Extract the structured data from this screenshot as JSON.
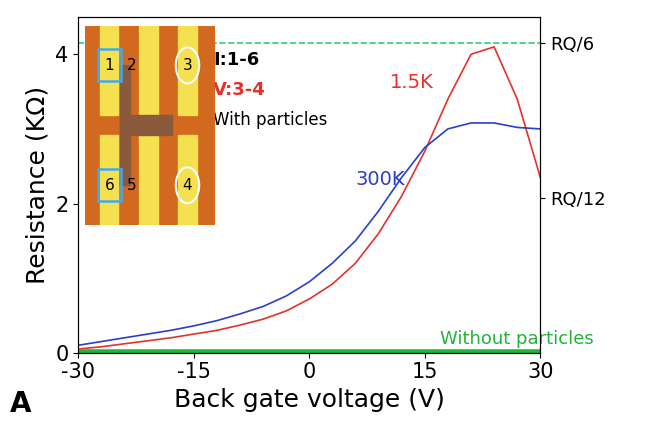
{
  "chart_data": {
    "type": "line",
    "x_label": "Back gate voltage (V)",
    "y_label": "Resistance (KΩ)",
    "panel": "A",
    "x": [
      -30,
      -27,
      -24,
      -21,
      -18,
      -15,
      -12,
      -9,
      -6,
      -3,
      0,
      3,
      6,
      9,
      12,
      15,
      18,
      21,
      24,
      27,
      30
    ],
    "series": [
      {
        "name": "1.5K",
        "color": "#e8302a",
        "line_style": "solid",
        "values": [
          0.05,
          0.08,
          0.12,
          0.16,
          0.2,
          0.25,
          0.3,
          0.37,
          0.45,
          0.56,
          0.72,
          0.92,
          1.2,
          1.6,
          2.1,
          2.7,
          3.4,
          4.0,
          4.1,
          3.4,
          2.35
        ]
      },
      {
        "name": "300K",
        "color": "#2c3fc8",
        "line_style": "solid",
        "values": [
          0.1,
          0.15,
          0.2,
          0.25,
          0.3,
          0.36,
          0.43,
          0.52,
          0.62,
          0.76,
          0.95,
          1.2,
          1.5,
          1.9,
          2.35,
          2.75,
          3.0,
          3.08,
          3.08,
          3.02,
          3.0
        ]
      },
      {
        "name": "Without particles",
        "color": "#22b33a",
        "line_style": "solid",
        "values": [
          0.01,
          0.01,
          0.01,
          0.01,
          0.01,
          0.01,
          0.01,
          0.01,
          0.01,
          0.01,
          0.01,
          0.01,
          0.01,
          0.01,
          0.01,
          0.01,
          0.01,
          0.01,
          0.01,
          0.01,
          0.01
        ]
      }
    ],
    "hline": {
      "value": 4.15,
      "color": "#2ecc71",
      "line_style": "dashed"
    },
    "xlim": [
      -30,
      30
    ],
    "xticks": [
      -30,
      -15,
      0,
      15,
      30
    ],
    "ylim": [
      0,
      4.5
    ],
    "yticks": [
      0,
      2,
      4
    ],
    "y2lim": [
      0,
      4.5
    ],
    "y2ticks": [
      {
        "value": 4.15,
        "label": "RQ/6"
      },
      {
        "value": 2.075,
        "label": "RQ/12"
      }
    ],
    "annotations": [
      {
        "text": "I:1-6",
        "color": "#000000"
      },
      {
        "text": "V:3-4",
        "color": "#e8302a"
      },
      {
        "text": "With particles",
        "color": "#000000"
      }
    ],
    "inset": {
      "contacts": [
        "1",
        "2",
        "3",
        "4",
        "5",
        "6"
      ]
    },
    "grid": false
  }
}
